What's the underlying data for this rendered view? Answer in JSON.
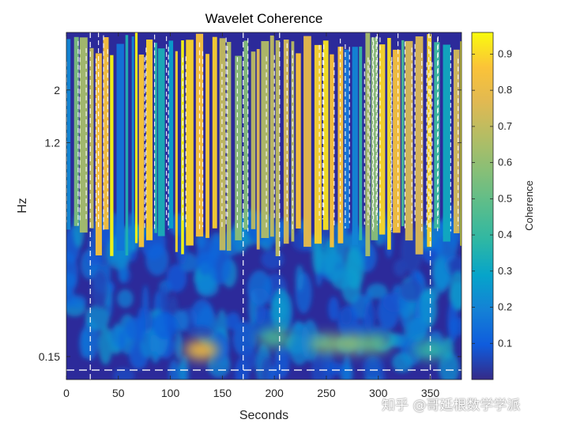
{
  "chart_data": {
    "type": "heatmap",
    "title": "Wavelet Coherence",
    "xlabel": "Seconds",
    "ylabel": "Hz",
    "colorbar_label": "Coherence",
    "xlim": [
      0,
      380
    ],
    "y_scale": "log",
    "ylim_hz": [
      0.12,
      3.5
    ],
    "x_ticks": [
      0,
      50,
      100,
      150,
      200,
      250,
      300,
      350
    ],
    "y_ticks": [
      {
        "value": 2,
        "label": "2"
      },
      {
        "value": 1.2,
        "label": "1.2"
      },
      {
        "value": 0.15,
        "label": "0.15"
      }
    ],
    "colorbar_range": [
      0,
      0.96
    ],
    "colorbar_ticks": [
      0.1,
      0.2,
      0.3,
      0.4,
      0.5,
      0.6,
      0.7,
      0.8,
      0.9
    ],
    "colormap": "parula",
    "low_frequency_hotspots": [
      {
        "seconds": 130,
        "hz": 0.16,
        "coherence": 0.85
      },
      {
        "seconds": 200,
        "hz": 0.18,
        "coherence": 0.45
      },
      {
        "seconds": 250,
        "hz": 0.17,
        "coherence": 0.55
      },
      {
        "seconds": 275,
        "hz": 0.17,
        "coherence": 0.6
      },
      {
        "seconds": 295,
        "hz": 0.17,
        "coherence": 0.5
      },
      {
        "seconds": 350,
        "hz": 0.16,
        "coherence": 0.4
      }
    ],
    "high_frequency_band_hz": [
      0.5,
      3.5
    ],
    "high_frequency_peak_coherence": 0.95
  },
  "watermark": "知乎 @哥廷根数学学派"
}
